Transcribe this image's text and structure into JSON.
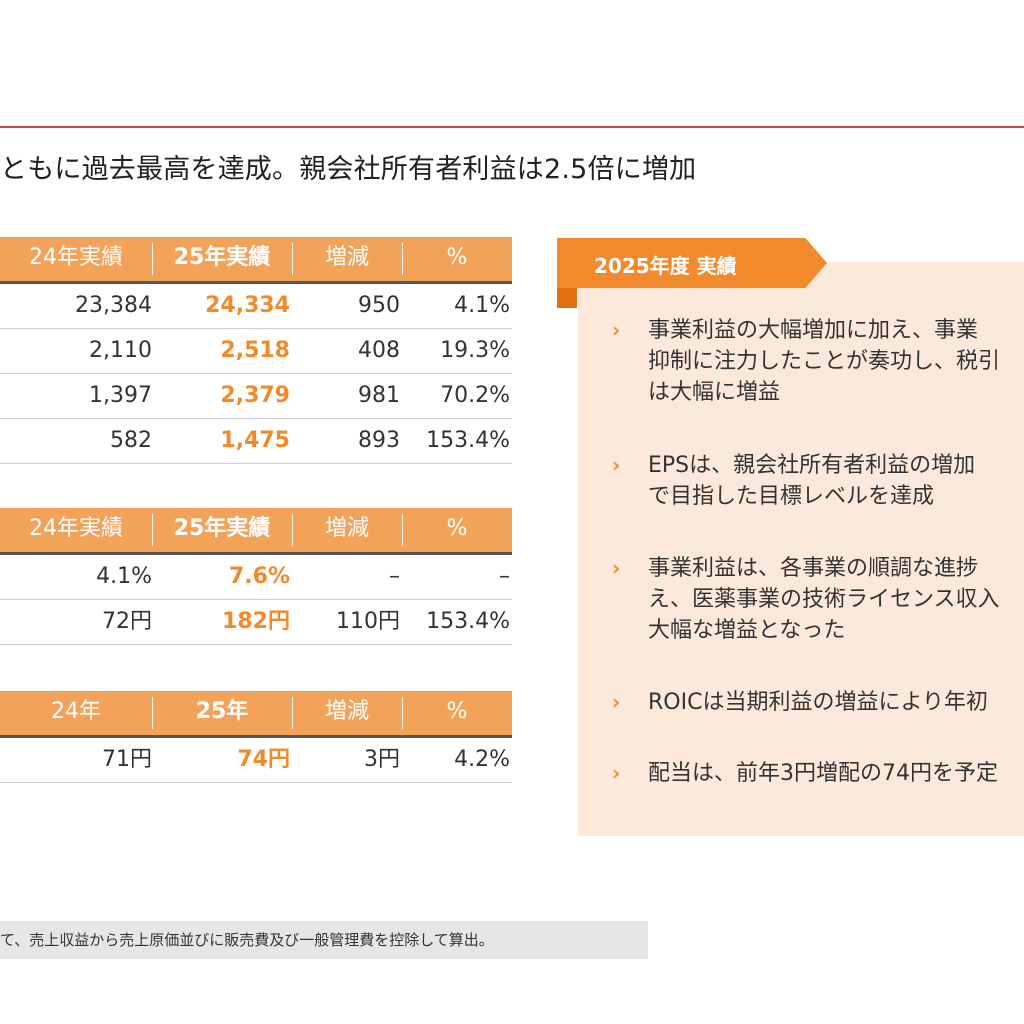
{
  "title": "ともに過去最高を達成。親会社所有者利益は2.5倍に増加",
  "table1": {
    "headers": [
      "24年実績",
      "25年実績",
      "増減",
      "%"
    ],
    "rows": [
      [
        "23,384",
        "24,334",
        "950",
        "4.1%"
      ],
      [
        "2,110",
        "2,518",
        "408",
        "19.3%"
      ],
      [
        "1,397",
        "2,379",
        "981",
        "70.2%"
      ],
      [
        "582",
        "1,475",
        "893",
        "153.4%"
      ]
    ]
  },
  "table2": {
    "headers": [
      "24年実績",
      "25年実績",
      "増減",
      "%"
    ],
    "rows": [
      [
        "4.1%",
        "7.6%",
        "–",
        "–"
      ],
      [
        "72円",
        "182円",
        "110円",
        "153.4%"
      ]
    ]
  },
  "table3": {
    "headers": [
      "24年",
      "25年",
      "増減",
      "%"
    ],
    "rows": [
      [
        "71円",
        "74円",
        "3円",
        "4.2%"
      ]
    ]
  },
  "panel": {
    "heading": "2025年度 実績",
    "bullet_glyph": "›",
    "bullets": [
      [
        "事業利益の大幅増加に加え、事業",
        "抑制に注力したことが奏功し、税引",
        "は大幅に増益"
      ],
      [
        "EPSは、親会社所有者利益の増加",
        "で目指した目標レベルを達成"
      ],
      [
        "事業利益は、各事業の順調な進捗",
        "え、医薬事業の技術ライセンス収入",
        "大幅な増益となった"
      ],
      [
        "ROICは当期利益の増益により年初"
      ],
      [
        "配当は、前年3円増配の74円を予定"
      ]
    ]
  },
  "footnote": "て、売上収益から売上原価並びに販売費及び一般管理費を控除して算出。",
  "colors": {
    "accent": "#f08a2c",
    "header_fill": "#f3a25a",
    "panel_bg": "#fde9dc",
    "rule": "#c8485a"
  }
}
